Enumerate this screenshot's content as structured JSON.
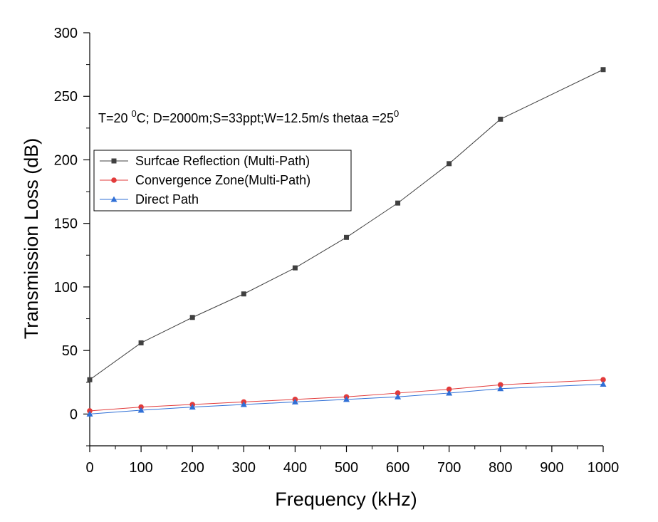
{
  "chart_data": {
    "type": "line",
    "xlabel": "Frequency (kHz)",
    "ylabel": "Transmission Loss (dB)",
    "xlim": [
      0,
      1000
    ],
    "ylim": [
      -25,
      300
    ],
    "xticks": [
      0,
      100,
      200,
      300,
      400,
      500,
      600,
      700,
      800,
      900,
      1000
    ],
    "yticks": [
      0,
      50,
      100,
      150,
      200,
      250,
      300
    ],
    "grid": false,
    "legend_position": "middle-left",
    "annotation": {
      "prefix": "T=20 ",
      "sup1": "0",
      "middle": "C; D=2000m;S=33ppt;W=12.5m/s thetaa =25",
      "sup2": "0"
    },
    "x": [
      0,
      100,
      200,
      300,
      400,
      500,
      600,
      700,
      800,
      900,
      1000
    ],
    "series": [
      {
        "name": "Surfcae Reflection (Multi-Path)",
        "color": "#404040",
        "marker": "square",
        "x": [
          0,
          100,
          200,
          300,
          400,
          500,
          600,
          700,
          800,
          1000
        ],
        "values": [
          27,
          56,
          76,
          94.5,
          115,
          139,
          166,
          197,
          232,
          271
        ]
      },
      {
        "name": "Convergence Zone(Multi-Path)",
        "color": "#e23b3b",
        "marker": "circle",
        "x": [
          0,
          100,
          200,
          300,
          400,
          500,
          600,
          700,
          800,
          1000
        ],
        "values": [
          2.5,
          5.5,
          7.5,
          9.5,
          11.5,
          13.5,
          16.5,
          19.5,
          23,
          27
        ]
      },
      {
        "name": "Direct Path",
        "color": "#2f6fd6",
        "marker": "triangle",
        "x": [
          0,
          100,
          200,
          300,
          400,
          500,
          600,
          700,
          800,
          1000
        ],
        "values": [
          0,
          3,
          5.5,
          7.5,
          9.5,
          11.5,
          13.5,
          16.5,
          20,
          23.5
        ]
      }
    ]
  }
}
